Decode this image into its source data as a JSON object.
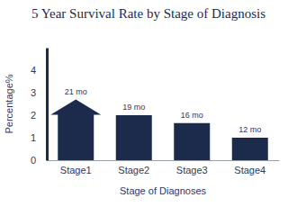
{
  "chart_data": {
    "type": "bar",
    "title": "5 Year Survival Rate by Stage of Diagnosis",
    "x_label": "Stage of Diagnoses",
    "y_label": "Percentage%",
    "categories": [
      "Stage1",
      "Stage2",
      "Stage3",
      "Stage4"
    ],
    "values": [
      2.7,
      2.0,
      1.65,
      1.0
    ],
    "annotations": [
      "21 mo",
      "19 mo",
      "16 mo",
      "12 mo"
    ],
    "color": "#1c2b4b",
    "ylim": [
      0,
      5
    ],
    "yticks": [
      0,
      1,
      2,
      3,
      4
    ],
    "grid": false
  }
}
